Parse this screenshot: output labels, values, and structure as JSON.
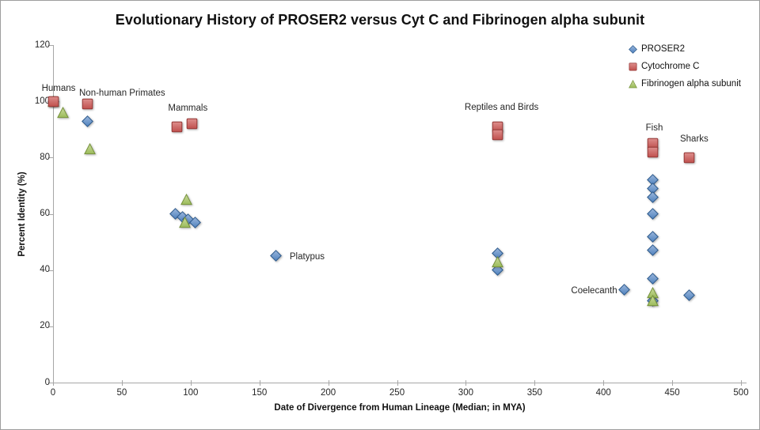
{
  "chart_data": {
    "type": "scatter",
    "title": "Evolutionary History of PROSER2 versus Cyt C and Fibrinogen alpha subunit",
    "xlabel": "Date of Divergence from Human Lineage (Median; in MYA)",
    "ylabel": "Percent Identity (%)",
    "xlim": [
      0,
      500
    ],
    "ylim": [
      0,
      120
    ],
    "x_ticks": [
      0,
      50,
      100,
      150,
      200,
      250,
      300,
      350,
      400,
      450,
      500
    ],
    "y_ticks": [
      0,
      20,
      40,
      60,
      80,
      100,
      120
    ],
    "grid": false,
    "legend_position": "top-right",
    "legend_order": [
      "PROSER2",
      "Cytochrome C",
      "Fibrinogen alpha subunit"
    ],
    "series": [
      {
        "name": "PROSER2",
        "marker": "diamond",
        "color": "#4F81BD",
        "color_light": "#9AB6DC",
        "edge": "#2C5A8C",
        "points": [
          [
            0,
            100
          ],
          [
            25,
            93
          ],
          [
            89,
            60
          ],
          [
            94,
            59
          ],
          [
            98,
            58
          ],
          [
            103,
            57
          ],
          [
            162,
            45
          ],
          [
            323,
            46
          ],
          [
            323,
            40
          ],
          [
            415,
            33
          ],
          [
            436,
            72
          ],
          [
            436,
            69
          ],
          [
            436,
            66
          ],
          [
            436,
            60
          ],
          [
            436,
            52
          ],
          [
            436,
            47
          ],
          [
            436,
            37
          ],
          [
            436,
            29
          ],
          [
            462,
            31
          ]
        ]
      },
      {
        "name": "Fibrinogen alpha subunit",
        "marker": "triangle",
        "color": "#9BBB59",
        "color_light": "#CCDCA0",
        "edge": "#77933C",
        "points": [
          [
            0,
            100
          ],
          [
            7,
            96
          ],
          [
            27,
            83
          ],
          [
            97,
            65
          ],
          [
            96,
            57
          ],
          [
            323,
            43
          ],
          [
            436,
            32
          ],
          [
            436,
            29
          ]
        ]
      },
      {
        "name": "Cytochrome C",
        "marker": "square",
        "color": "#C0504D",
        "color_light": "#DD8E8C",
        "edge": "#953735",
        "points": [
          [
            0,
            100
          ],
          [
            25,
            99
          ],
          [
            90,
            91
          ],
          [
            101,
            92
          ],
          [
            323,
            91
          ],
          [
            323,
            88
          ],
          [
            436,
            85
          ],
          [
            436,
            82
          ],
          [
            462,
            80
          ]
        ]
      }
    ],
    "annotations": [
      {
        "text": "Humans",
        "x": 4,
        "y": 104.5,
        "align": "center"
      },
      {
        "text": "Non-human Primates",
        "x": 19,
        "y": 102.8,
        "align": "left"
      },
      {
        "text": "Mammals",
        "x": 98,
        "y": 97.5,
        "align": "center"
      },
      {
        "text": "Reptiles and Birds",
        "x": 326,
        "y": 97.8,
        "align": "center"
      },
      {
        "text": "Platypus",
        "x": 172,
        "y": 44.7,
        "align": "left"
      },
      {
        "text": "Coelecanth",
        "x": 410,
        "y": 32.6,
        "align": "right"
      },
      {
        "text": "Fish",
        "x": 437,
        "y": 90.5,
        "align": "center"
      },
      {
        "text": "Sharks",
        "x": 466,
        "y": 86.5,
        "align": "center"
      }
    ]
  }
}
